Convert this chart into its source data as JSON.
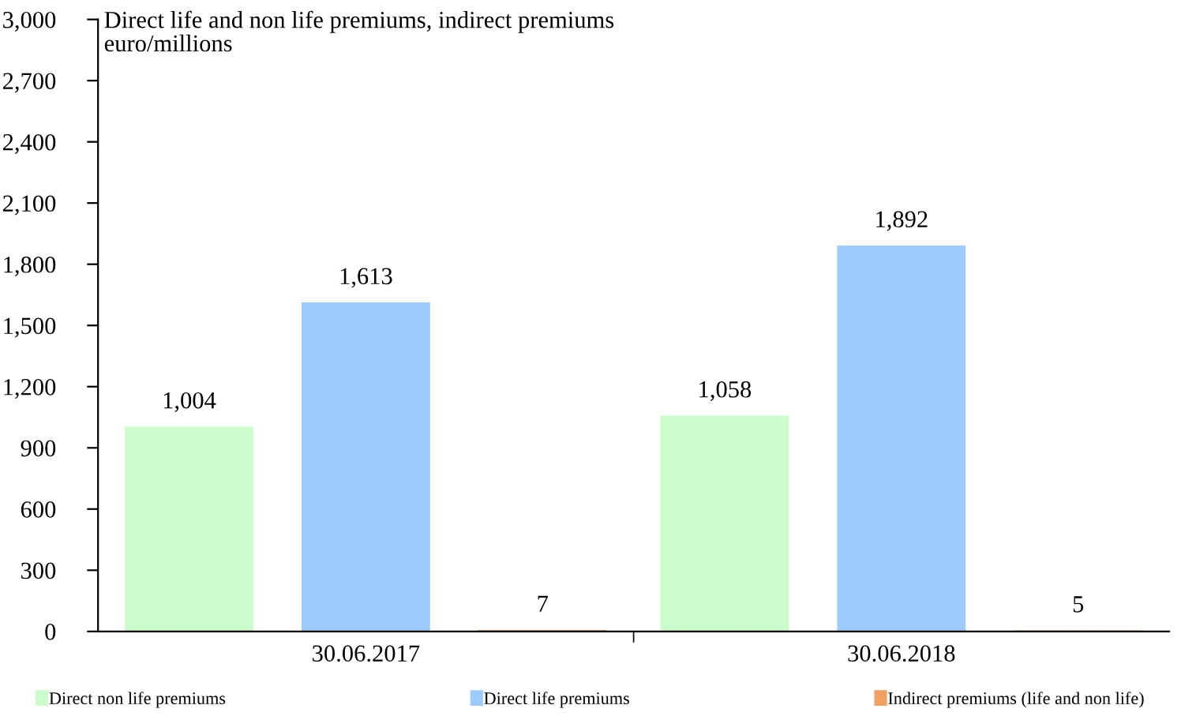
{
  "chart_data": {
    "type": "bar",
    "title": "Direct life and non life premiums, indirect premiums\neuro/millions",
    "categories": [
      "30.06.2017",
      "30.06.2018"
    ],
    "series": [
      {
        "name": "Direct non life premiums",
        "color": "#ccfccc",
        "values": [
          1004,
          1058
        ],
        "value_labels": [
          "1,004",
          "1,058"
        ]
      },
      {
        "name": "Direct life premiums",
        "color": "#9dcbfc",
        "values": [
          1613,
          1892
        ],
        "value_labels": [
          "1,613",
          "1,892"
        ]
      },
      {
        "name": "Indirect premiums (life and non life)",
        "color": "#f0a060",
        "values": [
          7,
          5
        ],
        "value_labels": [
          "7",
          "5"
        ]
      }
    ],
    "ylim": [
      0,
      3000
    ],
    "yticks": [
      {
        "value": 0,
        "label": "0"
      },
      {
        "value": 300,
        "label": "300"
      },
      {
        "value": 600,
        "label": "600"
      },
      {
        "value": 900,
        "label": "900"
      },
      {
        "value": 1200,
        "label": "1,200"
      },
      {
        "value": 1500,
        "label": "1,500"
      },
      {
        "value": 1800,
        "label": "1,800"
      },
      {
        "value": 2100,
        "label": "2,100"
      },
      {
        "value": 2400,
        "label": "2,400"
      },
      {
        "value": 2700,
        "label": "2,700"
      },
      {
        "value": 3000,
        "label": "3,000"
      }
    ],
    "grid": false,
    "legend": "bottom"
  }
}
